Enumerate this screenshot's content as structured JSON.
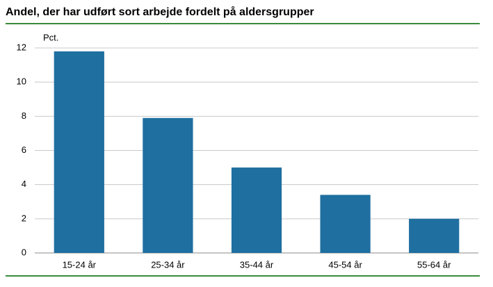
{
  "chart_data": {
    "type": "bar",
    "title": "Andel, der har udført sort arbejde fordelt på aldersgrupper",
    "y_label": "Pct.",
    "categories": [
      "15-24 år",
      "25-34 år",
      "35-44 år",
      "45-54 år",
      "55-64 år"
    ],
    "values": [
      11.8,
      7.9,
      5.0,
      3.4,
      2.0
    ],
    "color": "#1f6fa0",
    "ylim": [
      0,
      12
    ],
    "yticks": [
      0,
      2,
      4,
      6,
      8,
      10,
      12
    ],
    "grid": true
  }
}
